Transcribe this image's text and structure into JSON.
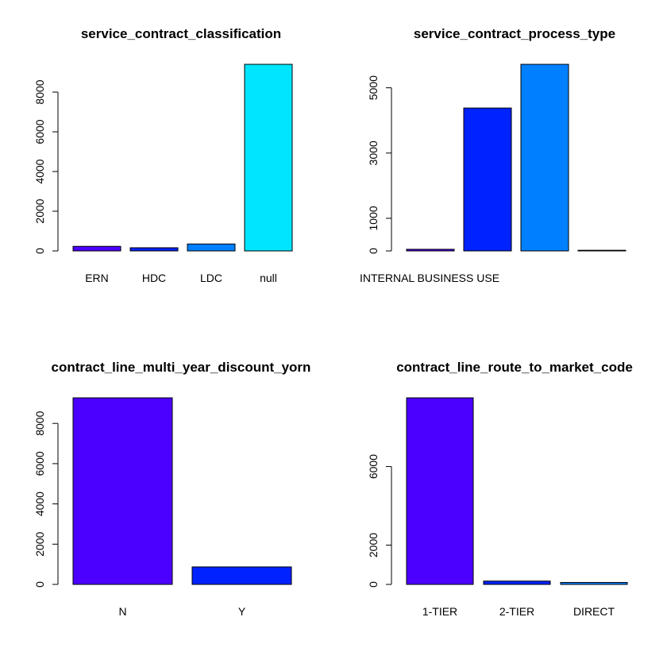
{
  "chart_data": [
    {
      "type": "bar",
      "title": "service_contract_classification",
      "categories": [
        "ERN",
        "HDC",
        "LDC",
        "null"
      ],
      "category_labels": [
        "ERN",
        "HDC",
        "LDC",
        "null"
      ],
      "values": [
        230,
        160,
        350,
        9400
      ],
      "colors": [
        "#4B00FF",
        "#0022FF",
        "#0080FF",
        "#00E5FF"
      ],
      "yticks": [
        0,
        2000,
        4000,
        6000,
        8000
      ],
      "ylim": [
        0,
        9400
      ]
    },
    {
      "type": "bar",
      "title": "service_contract_process_type",
      "categories": [
        "INTERNAL BUSINESS USE",
        "",
        "",
        ""
      ],
      "category_labels": [
        "INTERNAL BUSINESS USE",
        "",
        "",
        ""
      ],
      "values": [
        50,
        4380,
        5720,
        20
      ],
      "colors": [
        "#4B00FF",
        "#0022FF",
        "#0080FF",
        "#00E5FF"
      ],
      "yticks": [
        0,
        1000,
        3000,
        5000
      ],
      "ylim": [
        0,
        5720
      ]
    },
    {
      "type": "bar",
      "title": "contract_line_multi_year_discount_yorn",
      "categories": [
        "N",
        "Y"
      ],
      "category_labels": [
        "N",
        "Y"
      ],
      "values": [
        9270,
        870
      ],
      "colors": [
        "#4B00FF",
        "#0022FF"
      ],
      "yticks": [
        0,
        2000,
        4000,
        6000,
        8000
      ],
      "ylim": [
        0,
        9270
      ]
    },
    {
      "type": "bar",
      "title": "contract_line_route_to_market_code",
      "categories": [
        "1-TIER",
        "2-TIER",
        "DIRECT"
      ],
      "category_labels": [
        "1-TIER",
        "2-TIER",
        "DIRECT"
      ],
      "values": [
        9500,
        170,
        100
      ],
      "colors": [
        "#4B00FF",
        "#0022FF",
        "#0080FF"
      ],
      "yticks": [
        0,
        2000,
        6000
      ],
      "ylim": [
        0,
        9500
      ]
    }
  ]
}
